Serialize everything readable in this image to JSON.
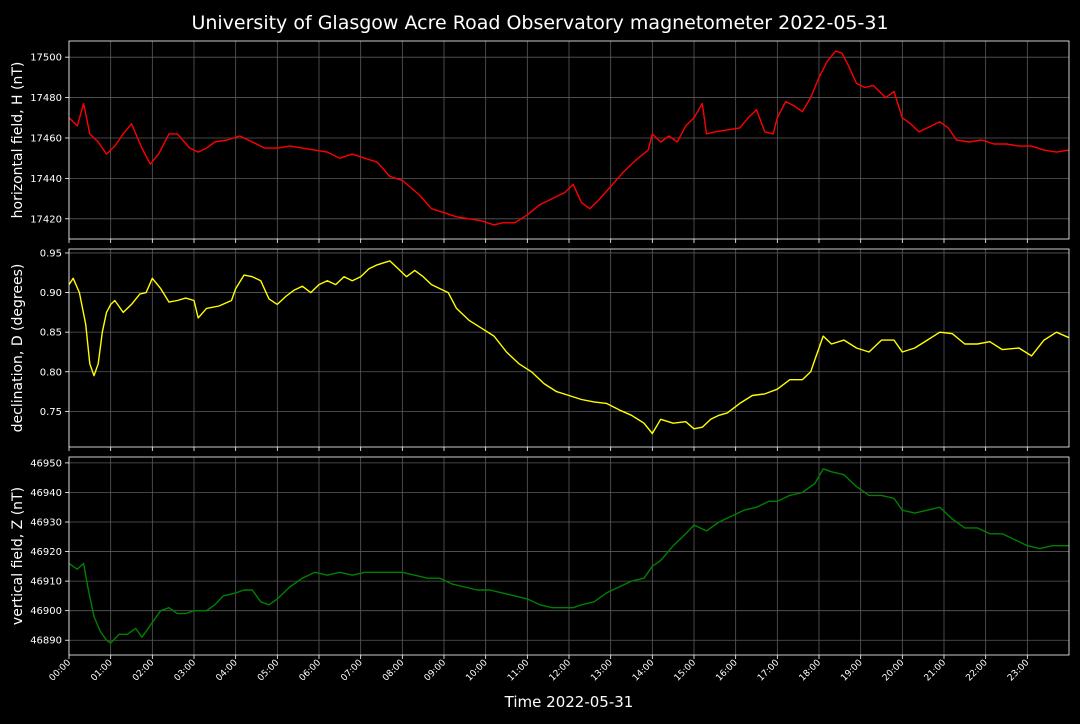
{
  "title": "University of Glasgow Acre Road Observatory magnetometer 2022-05-31",
  "xlabel": "Time 2022-05-31",
  "time_ticks": [
    "00:00",
    "01:00",
    "02:00",
    "03:00",
    "04:00",
    "05:00",
    "06:00",
    "07:00",
    "08:00",
    "09:00",
    "10:00",
    "11:00",
    "12:00",
    "13:00",
    "14:00",
    "15:00",
    "16:00",
    "17:00",
    "18:00",
    "19:00",
    "20:00",
    "21:00",
    "22:00",
    "23:00"
  ],
  "colors": {
    "background": "#000000",
    "grid": "#5a5a5a",
    "axes": "#ffffff",
    "H": "#ff0000",
    "D": "#ffff00",
    "Z": "#008000"
  },
  "chart_data": [
    {
      "type": "line",
      "ylabel": "horizontal field, H (nT)",
      "xlim": [
        0,
        24
      ],
      "ylim": [
        17410,
        17508
      ],
      "yticks": [
        17420,
        17440,
        17460,
        17480,
        17500
      ],
      "ytick_labels": [
        "17420",
        "17440",
        "17460",
        "17480",
        "17500"
      ],
      "series": [
        {
          "color": "#ff0000",
          "x": [
            0,
            0.2,
            0.35,
            0.5,
            0.7,
            0.9,
            1.1,
            1.3,
            1.5,
            1.75,
            1.95,
            2.15,
            2.4,
            2.6,
            2.9,
            3.1,
            3.3,
            3.5,
            3.8,
            4.1,
            4.4,
            4.7,
            5.0,
            5.3,
            5.6,
            5.9,
            6.2,
            6.5,
            6.8,
            7.1,
            7.4,
            7.7,
            8.0,
            8.4,
            8.7,
            9.0,
            9.3,
            9.6,
            9.9,
            10.2,
            10.4,
            10.7,
            11.0,
            11.3,
            11.6,
            11.9,
            12.1,
            12.3,
            12.5,
            12.7,
            13.0,
            13.3,
            13.6,
            13.9,
            14.0,
            14.2,
            14.4,
            14.6,
            14.8,
            15.0,
            15.2,
            15.3,
            15.5,
            15.8,
            16.1,
            16.3,
            16.5,
            16.7,
            16.9,
            17.0,
            17.2,
            17.4,
            17.6,
            17.8,
            18.0,
            18.2,
            18.4,
            18.55,
            18.7,
            18.9,
            19.1,
            19.3,
            19.6,
            19.8,
            20.0,
            20.2,
            20.4,
            20.6,
            20.9,
            21.1,
            21.3,
            21.6,
            21.9,
            22.2,
            22.5,
            22.8,
            23.1,
            23.4,
            23.7,
            24.0
          ],
          "y": [
            17470,
            17466,
            17477,
            17462,
            17458,
            17452,
            17456,
            17462,
            17467,
            17455,
            17447,
            17452,
            17462,
            17462,
            17455,
            17453,
            17455,
            17458,
            17459,
            17461,
            17458,
            17455,
            17455,
            17456,
            17455,
            17454,
            17453,
            17450,
            17452,
            17450,
            17448,
            17441,
            17439,
            17432,
            17425,
            17423,
            17421,
            17420,
            17419,
            17417,
            17418,
            17418,
            17422,
            17427,
            17430,
            17433,
            17437,
            17428,
            17425,
            17429,
            17436,
            17443,
            17449,
            17454,
            17462,
            17458,
            17461,
            17458,
            17466,
            17470,
            17477,
            17462,
            17463,
            17464,
            17465,
            17470,
            17474,
            17463,
            17462,
            17470,
            17478,
            17476,
            17473,
            17480,
            17490,
            17498,
            17503,
            17502,
            17496,
            17487,
            17485,
            17486,
            17480,
            17483,
            17470,
            17467,
            17463,
            17465,
            17468,
            17465,
            17459,
            17458,
            17459,
            17457,
            17457,
            17456,
            17456,
            17454,
            17453,
            17454
          ]
        }
      ]
    },
    {
      "type": "line",
      "ylabel": "declination, D (degrees)",
      "xlim": [
        0,
        24
      ],
      "ylim": [
        0.705,
        0.955
      ],
      "yticks": [
        0.75,
        0.8,
        0.85,
        0.9,
        0.95
      ],
      "ytick_labels": [
        "0.75",
        "0.80",
        "0.85",
        "0.90",
        "0.95"
      ],
      "series": [
        {
          "color": "#ffff00",
          "x": [
            0,
            0.1,
            0.25,
            0.4,
            0.5,
            0.6,
            0.7,
            0.8,
            0.9,
            1.0,
            1.1,
            1.3,
            1.5,
            1.7,
            1.85,
            2.0,
            2.2,
            2.4,
            2.6,
            2.8,
            3.0,
            3.1,
            3.3,
            3.6,
            3.9,
            4.0,
            4.2,
            4.4,
            4.6,
            4.8,
            5.0,
            5.2,
            5.4,
            5.6,
            5.8,
            6.0,
            6.2,
            6.4,
            6.6,
            6.8,
            7.0,
            7.2,
            7.4,
            7.7,
            7.9,
            8.1,
            8.3,
            8.5,
            8.7,
            8.9,
            9.1,
            9.3,
            9.6,
            9.9,
            10.2,
            10.5,
            10.8,
            11.1,
            11.4,
            11.7,
            12.0,
            12.3,
            12.6,
            12.9,
            13.2,
            13.5,
            13.8,
            14.0,
            14.2,
            14.5,
            14.8,
            15.0,
            15.2,
            15.4,
            15.6,
            15.8,
            16.1,
            16.4,
            16.7,
            17.0,
            17.3,
            17.6,
            17.8,
            17.9,
            18.1,
            18.3,
            18.6,
            18.9,
            19.2,
            19.5,
            19.8,
            20.0,
            20.3,
            20.6,
            20.9,
            21.2,
            21.5,
            21.8,
            22.1,
            22.4,
            22.8,
            23.1,
            23.4,
            23.7,
            24.0
          ],
          "y": [
            0.91,
            0.918,
            0.9,
            0.86,
            0.81,
            0.795,
            0.81,
            0.85,
            0.875,
            0.885,
            0.89,
            0.875,
            0.885,
            0.898,
            0.9,
            0.918,
            0.905,
            0.888,
            0.89,
            0.893,
            0.89,
            0.868,
            0.88,
            0.883,
            0.89,
            0.905,
            0.922,
            0.92,
            0.915,
            0.892,
            0.885,
            0.895,
            0.903,
            0.908,
            0.9,
            0.91,
            0.915,
            0.91,
            0.92,
            0.915,
            0.92,
            0.93,
            0.935,
            0.94,
            0.93,
            0.92,
            0.928,
            0.92,
            0.91,
            0.905,
            0.9,
            0.88,
            0.865,
            0.855,
            0.845,
            0.825,
            0.81,
            0.8,
            0.785,
            0.775,
            0.77,
            0.765,
            0.762,
            0.76,
            0.752,
            0.745,
            0.735,
            0.722,
            0.74,
            0.735,
            0.737,
            0.728,
            0.73,
            0.74,
            0.745,
            0.748,
            0.76,
            0.77,
            0.772,
            0.778,
            0.79,
            0.79,
            0.8,
            0.815,
            0.845,
            0.835,
            0.84,
            0.83,
            0.825,
            0.84,
            0.84,
            0.825,
            0.83,
            0.84,
            0.85,
            0.848,
            0.835,
            0.835,
            0.838,
            0.828,
            0.83,
            0.82,
            0.84,
            0.85,
            0.843
          ]
        }
      ]
    },
    {
      "type": "line",
      "ylabel": "vertical field, Z (nT)",
      "xlim": [
        0,
        24
      ],
      "ylim": [
        46885,
        46952
      ],
      "yticks": [
        46890,
        46900,
        46910,
        46920,
        46930,
        46940,
        46950
      ],
      "ytick_labels": [
        "46890",
        "46900",
        "46910",
        "46920",
        "46930",
        "46940",
        "46950"
      ],
      "series": [
        {
          "color": "#008000",
          "x": [
            0,
            0.2,
            0.35,
            0.45,
            0.6,
            0.75,
            0.9,
            1.0,
            1.2,
            1.4,
            1.6,
            1.75,
            2.0,
            2.2,
            2.4,
            2.6,
            2.8,
            3.0,
            3.3,
            3.5,
            3.7,
            4.0,
            4.2,
            4.4,
            4.6,
            4.8,
            5.0,
            5.3,
            5.6,
            5.9,
            6.2,
            6.5,
            6.8,
            7.1,
            7.4,
            7.7,
            8.0,
            8.3,
            8.6,
            8.9,
            9.2,
            9.5,
            9.8,
            10.1,
            10.4,
            10.7,
            11.0,
            11.3,
            11.6,
            11.9,
            12.1,
            12.3,
            12.6,
            12.9,
            13.2,
            13.5,
            13.8,
            14.0,
            14.2,
            14.5,
            14.8,
            15.0,
            15.3,
            15.6,
            15.9,
            16.2,
            16.5,
            16.8,
            17.0,
            17.3,
            17.6,
            17.9,
            18.1,
            18.3,
            18.6,
            18.9,
            19.2,
            19.5,
            19.8,
            20.0,
            20.3,
            20.6,
            20.9,
            21.2,
            21.5,
            21.8,
            22.1,
            22.4,
            22.7,
            23.0,
            23.3,
            23.6,
            24.0
          ],
          "y": [
            46916,
            46914,
            46916,
            46908,
            46898,
            46893,
            46890,
            46889,
            46892,
            46892,
            46894,
            46891,
            46896,
            46900,
            46901,
            46899,
            46899,
            46900,
            46900,
            46902,
            46905,
            46906,
            46907,
            46907,
            46903,
            46902,
            46904,
            46908,
            46911,
            46913,
            46912,
            46913,
            46912,
            46913,
            46913,
            46913,
            46913,
            46912,
            46911,
            46911,
            46909,
            46908,
            46907,
            46907,
            46906,
            46905,
            46904,
            46902,
            46901,
            46901,
            46901,
            46902,
            46903,
            46906,
            46908,
            46910,
            46911,
            46915,
            46917,
            46922,
            46926,
            46929,
            46927,
            46930,
            46932,
            46934,
            46935,
            46937,
            46937,
            46939,
            46940,
            46943,
            46948,
            46947,
            46946,
            46942,
            46939,
            46939,
            46938,
            46934,
            46933,
            46934,
            46935,
            46931,
            46928,
            46928,
            46926,
            46926,
            46924,
            46922,
            46921,
            46922,
            46922
          ]
        }
      ]
    }
  ]
}
